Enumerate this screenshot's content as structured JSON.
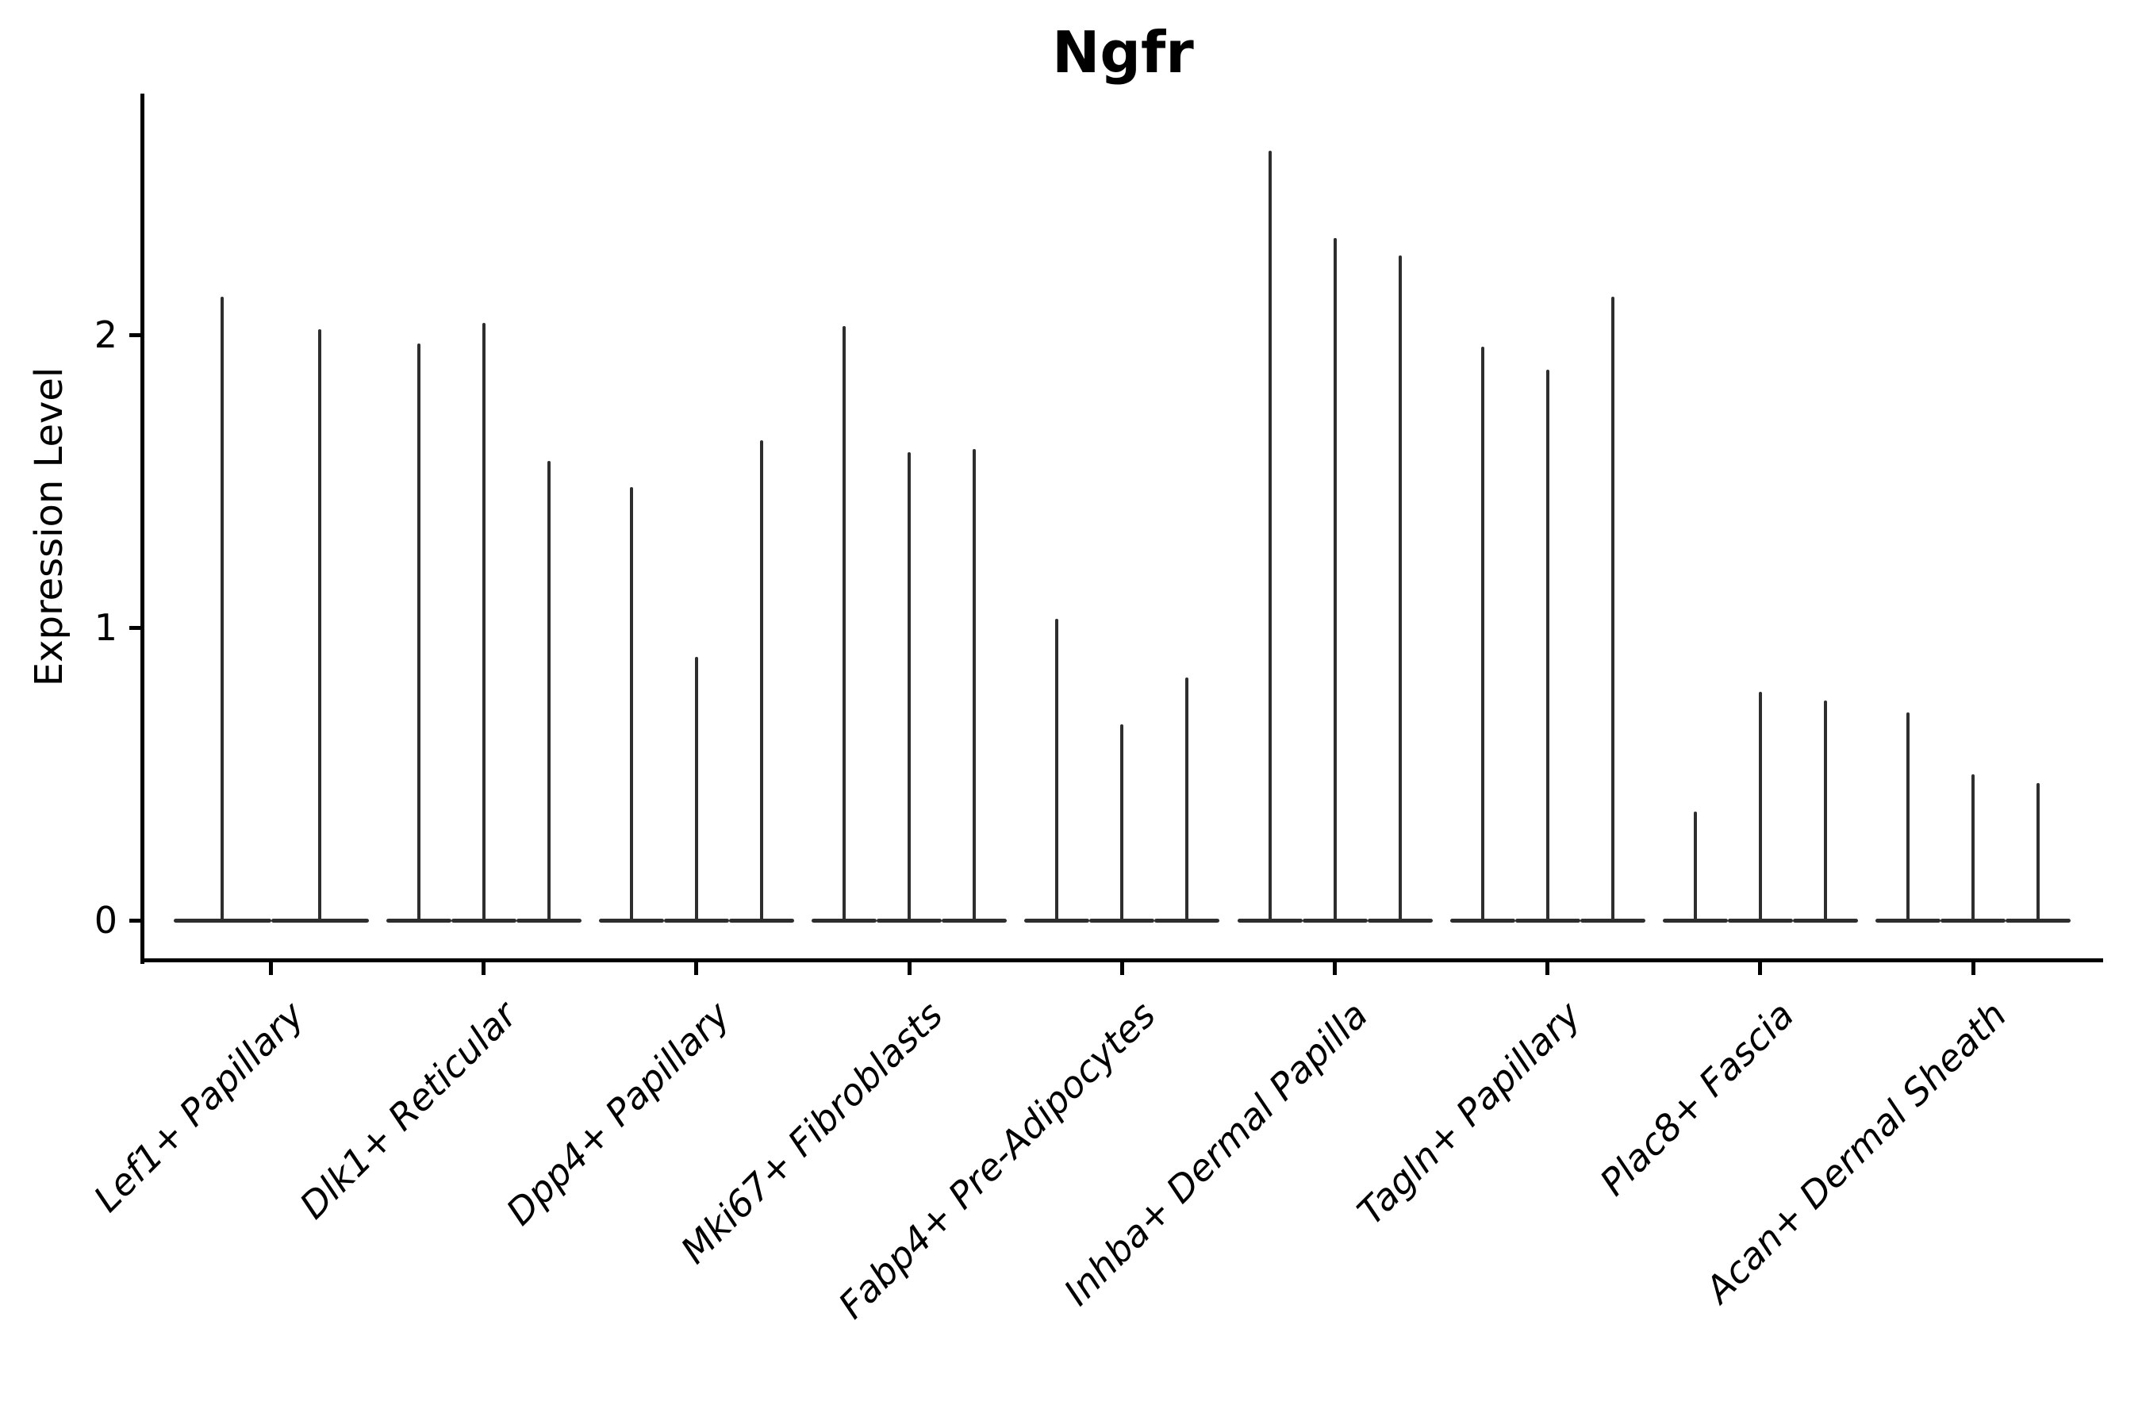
{
  "chart_data": {
    "type": "violin",
    "title": "Ngfr",
    "ylabel": "Expression Level",
    "xlabel": "",
    "yticks": [
      0,
      1,
      2
    ],
    "ylim": [
      -0.14,
      2.82
    ],
    "grid": false,
    "legend": "none",
    "violin_color": "#2e2e2e",
    "axis_color": "#000000",
    "categories": [
      "Lef1+ Papillary",
      "Dlk1+ Reticular",
      "Dpp4+ Papillary",
      "Mki67+ Fibroblasts",
      "Fabp4+ Pre-Adipocytes",
      "Inhba+ Dermal Papilla",
      "Tagln+ Papillary",
      "Plac8+ Fascia",
      "Acan+ Dermal Sheath"
    ],
    "groups": [
      {
        "label": "Lef1+ Papillary",
        "violin_max": [
          2.13,
          2.02
        ]
      },
      {
        "label": "Dlk1+ Reticular",
        "violin_max": [
          1.97,
          2.04,
          1.57
        ]
      },
      {
        "label": "Dpp4+ Papillary",
        "violin_max": [
          1.48,
          0.9,
          1.64
        ]
      },
      {
        "label": "Mki67+ Fibroblasts",
        "violin_max": [
          2.03,
          1.6,
          1.61
        ]
      },
      {
        "label": "Fabp4+ Pre-Adipocytes",
        "violin_max": [
          1.03,
          0.67,
          0.83
        ]
      },
      {
        "label": "Inhba+ Dermal Papilla",
        "violin_max": [
          2.63,
          2.33,
          2.27
        ]
      },
      {
        "label": "Tagln+ Papillary",
        "violin_max": [
          1.96,
          1.88,
          2.13
        ]
      },
      {
        "label": "Plac8+ Fascia",
        "violin_max": [
          0.37,
          0.78,
          0.75
        ]
      },
      {
        "label": "Acan+ Dermal Sheath",
        "violin_max": [
          0.71,
          0.5,
          0.47
        ]
      }
    ],
    "violin_baseline_value": 0
  }
}
